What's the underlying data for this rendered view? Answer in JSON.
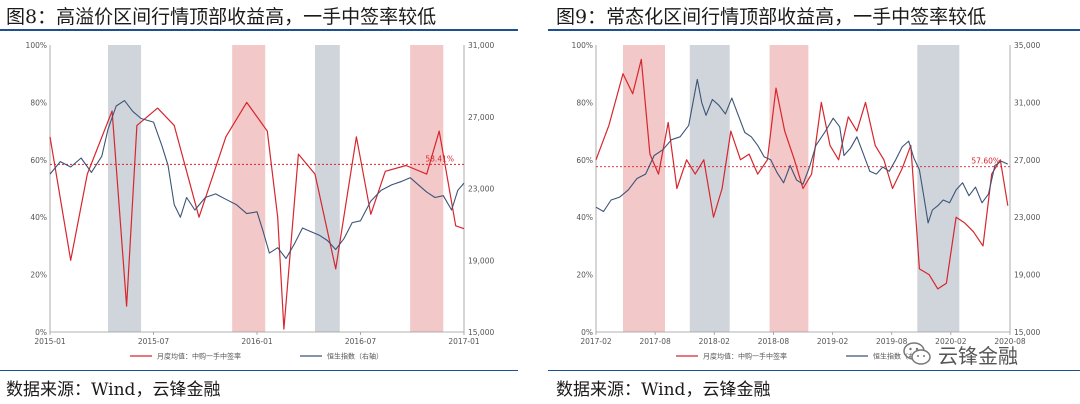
{
  "fig8": {
    "title": "图8：高溢价区间行情顶部收益高，一手中签率较低",
    "source": "数据来源：Wind，云锋金融"
  },
  "fig9": {
    "title": "图9：常态化区间行情顶部收益高，一手中签率较低",
    "source": "数据来源：Wind，云锋金融"
  },
  "watermark": {
    "text": "云锋金融",
    "icon": "wechat-icon"
  },
  "colors": {
    "red": "#d7262d",
    "navy": "#3d5478",
    "grey_band": "#a9b2c0",
    "red_band": "#e99a9a",
    "rule": "#1e4f91"
  },
  "chart_data": [
    {
      "type": "line",
      "x_ticks": [
        "2015-01",
        "2015-07",
        "2016-01",
        "2016-07",
        "2017-01"
      ],
      "y_left_ticks": [
        "0%",
        "20%",
        "40%",
        "60%",
        "80%",
        "100%"
      ],
      "y_left_range": [
        0,
        100
      ],
      "y_right_ticks": [
        "15,000",
        "19,000",
        "23,000",
        "27,000",
        "31,000"
      ],
      "y_right_range": [
        15000,
        31000
      ],
      "x_range": [
        2015.0,
        2017.0
      ],
      "reference": {
        "label": "58.41%",
        "value": 58.41,
        "axis": "left"
      },
      "bands": [
        {
          "kind": "grey",
          "from": 2015.28,
          "to": 2015.44
        },
        {
          "kind": "red",
          "from": 2015.88,
          "to": 2016.04
        },
        {
          "kind": "grey",
          "from": 2016.28,
          "to": 2016.4
        },
        {
          "kind": "red",
          "from": 2016.74,
          "to": 2016.9
        }
      ],
      "series": [
        {
          "name": "月度均值：中购一手中签率",
          "axis": "left",
          "color": "#d7262d",
          "points": [
            [
              2015.0,
              68
            ],
            [
              2015.1,
              25
            ],
            [
              2015.18,
              55
            ],
            [
              2015.3,
              77
            ],
            [
              2015.37,
              9
            ],
            [
              2015.42,
              72
            ],
            [
              2015.52,
              78
            ],
            [
              2015.6,
              72
            ],
            [
              2015.72,
              40
            ],
            [
              2015.85,
              68
            ],
            [
              2015.95,
              80
            ],
            [
              2016.05,
              70
            ],
            [
              2016.1,
              40
            ],
            [
              2016.13,
              1
            ],
            [
              2016.2,
              62
            ],
            [
              2016.28,
              55
            ],
            [
              2016.38,
              22
            ],
            [
              2016.48,
              68
            ],
            [
              2016.55,
              41
            ],
            [
              2016.62,
              56
            ],
            [
              2016.72,
              58
            ],
            [
              2016.82,
              55
            ],
            [
              2016.88,
              70
            ],
            [
              2016.96,
              37
            ],
            [
              2017.0,
              36
            ]
          ]
        },
        {
          "name": "恒生指数（右轴）",
          "axis": "right",
          "color": "#3d5478",
          "points": [
            [
              2015.0,
              23800
            ],
            [
              2015.05,
              24500
            ],
            [
              2015.1,
              24200
            ],
            [
              2015.15,
              24700
            ],
            [
              2015.2,
              23900
            ],
            [
              2015.25,
              24800
            ],
            [
              2015.28,
              26300
            ],
            [
              2015.32,
              27600
            ],
            [
              2015.36,
              27900
            ],
            [
              2015.4,
              27300
            ],
            [
              2015.44,
              26900
            ],
            [
              2015.5,
              26700
            ],
            [
              2015.54,
              25400
            ],
            [
              2015.57,
              24300
            ],
            [
              2015.6,
              22100
            ],
            [
              2015.63,
              21400
            ],
            [
              2015.66,
              22500
            ],
            [
              2015.7,
              21800
            ],
            [
              2015.75,
              22500
            ],
            [
              2015.8,
              22700
            ],
            [
              2015.85,
              22400
            ],
            [
              2015.9,
              22100
            ],
            [
              2015.95,
              21600
            ],
            [
              2016.0,
              21700
            ],
            [
              2016.03,
              20600
            ],
            [
              2016.06,
              19400
            ],
            [
              2016.1,
              19700
            ],
            [
              2016.14,
              19100
            ],
            [
              2016.18,
              19900
            ],
            [
              2016.22,
              20800
            ],
            [
              2016.26,
              20600
            ],
            [
              2016.3,
              20400
            ],
            [
              2016.34,
              20100
            ],
            [
              2016.38,
              19600
            ],
            [
              2016.42,
              20200
            ],
            [
              2016.46,
              21100
            ],
            [
              2016.5,
              21200
            ],
            [
              2016.55,
              22300
            ],
            [
              2016.6,
              22900
            ],
            [
              2016.65,
              23200
            ],
            [
              2016.7,
              23400
            ],
            [
              2016.74,
              23600
            ],
            [
              2016.78,
              23200
            ],
            [
              2016.82,
              22800
            ],
            [
              2016.86,
              22500
            ],
            [
              2016.9,
              22600
            ],
            [
              2016.94,
              21800
            ],
            [
              2016.97,
              22900
            ],
            [
              2017.0,
              23300
            ]
          ]
        }
      ]
    },
    {
      "type": "line",
      "x_ticks": [
        "2017-02",
        "2017-08",
        "2018-02",
        "2018-08",
        "2019-02",
        "2019-08",
        "2020-02",
        "2020-08"
      ],
      "y_left_ticks": [
        "0%",
        "20%",
        "40%",
        "60%",
        "80%",
        "100%"
      ],
      "y_left_range": [
        0,
        100
      ],
      "y_right_ticks": [
        "15,000",
        "19,000",
        "23,000",
        "27,000",
        "31,000",
        "35,000"
      ],
      "y_right_range": [
        15000,
        35000
      ],
      "x_range": [
        2017.08,
        2020.92
      ],
      "reference": {
        "label": "57.60%",
        "value": 57.6,
        "axis": "left"
      },
      "bands": [
        {
          "kind": "red",
          "from": 2017.33,
          "to": 2017.72
        },
        {
          "kind": "grey",
          "from": 2017.95,
          "to": 2018.32
        },
        {
          "kind": "red",
          "from": 2018.69,
          "to": 2019.05
        },
        {
          "kind": "grey",
          "from": 2020.06,
          "to": 2020.45
        }
      ],
      "series": [
        {
          "name": "月度均值：中购一手中签率",
          "axis": "left",
          "color": "#d7262d",
          "points": [
            [
              2017.08,
              60
            ],
            [
              2017.2,
              72
            ],
            [
              2017.33,
              90
            ],
            [
              2017.42,
              83
            ],
            [
              2017.5,
              95
            ],
            [
              2017.58,
              62
            ],
            [
              2017.66,
              55
            ],
            [
              2017.75,
              73
            ],
            [
              2017.83,
              50
            ],
            [
              2017.92,
              60
            ],
            [
              2018.0,
              55
            ],
            [
              2018.08,
              60
            ],
            [
              2018.17,
              40
            ],
            [
              2018.25,
              50
            ],
            [
              2018.33,
              70
            ],
            [
              2018.42,
              60
            ],
            [
              2018.5,
              62
            ],
            [
              2018.58,
              55
            ],
            [
              2018.67,
              60
            ],
            [
              2018.75,
              85
            ],
            [
              2018.83,
              70
            ],
            [
              2018.92,
              60
            ],
            [
              2019.0,
              50
            ],
            [
              2019.08,
              55
            ],
            [
              2019.17,
              80
            ],
            [
              2019.25,
              65
            ],
            [
              2019.33,
              60
            ],
            [
              2019.42,
              75
            ],
            [
              2019.5,
              70
            ],
            [
              2019.58,
              80
            ],
            [
              2019.67,
              65
            ],
            [
              2019.75,
              60
            ],
            [
              2019.83,
              50
            ],
            [
              2019.92,
              57
            ],
            [
              2020.0,
              65
            ],
            [
              2020.08,
              22
            ],
            [
              2020.17,
              20
            ],
            [
              2020.25,
              15
            ],
            [
              2020.33,
              17
            ],
            [
              2020.42,
              40
            ],
            [
              2020.5,
              38
            ],
            [
              2020.58,
              35
            ],
            [
              2020.67,
              30
            ],
            [
              2020.75,
              55
            ],
            [
              2020.83,
              60
            ],
            [
              2020.9,
              44
            ]
          ]
        },
        {
          "name": "恒生指数（右轴）",
          "axis": "right",
          "color": "#3d5478",
          "points": [
            [
              2017.08,
              23700
            ],
            [
              2017.15,
              23400
            ],
            [
              2017.22,
              24200
            ],
            [
              2017.3,
              24400
            ],
            [
              2017.38,
              24900
            ],
            [
              2017.46,
              25700
            ],
            [
              2017.54,
              26000
            ],
            [
              2017.62,
              27300
            ],
            [
              2017.7,
              27700
            ],
            [
              2017.78,
              28400
            ],
            [
              2017.86,
              28600
            ],
            [
              2017.94,
              29400
            ],
            [
              2018.02,
              32600
            ],
            [
              2018.06,
              31000
            ],
            [
              2018.1,
              30100
            ],
            [
              2018.16,
              31200
            ],
            [
              2018.22,
              30800
            ],
            [
              2018.28,
              30200
            ],
            [
              2018.34,
              31300
            ],
            [
              2018.4,
              30100
            ],
            [
              2018.46,
              28900
            ],
            [
              2018.52,
              28600
            ],
            [
              2018.58,
              28000
            ],
            [
              2018.64,
              27200
            ],
            [
              2018.7,
              27000
            ],
            [
              2018.76,
              26100
            ],
            [
              2018.82,
              25400
            ],
            [
              2018.88,
              26600
            ],
            [
              2018.94,
              25600
            ],
            [
              2019.0,
              25300
            ],
            [
              2019.06,
              26500
            ],
            [
              2019.12,
              28000
            ],
            [
              2019.2,
              28900
            ],
            [
              2019.28,
              29900
            ],
            [
              2019.34,
              29300
            ],
            [
              2019.38,
              27300
            ],
            [
              2019.44,
              27800
            ],
            [
              2019.5,
              28600
            ],
            [
              2019.56,
              27400
            ],
            [
              2019.62,
              26200
            ],
            [
              2019.68,
              26000
            ],
            [
              2019.74,
              26500
            ],
            [
              2019.8,
              26200
            ],
            [
              2019.86,
              27000
            ],
            [
              2019.92,
              27900
            ],
            [
              2019.98,
              28300
            ],
            [
              2020.03,
              27100
            ],
            [
              2020.08,
              26300
            ],
            [
              2020.12,
              24500
            ],
            [
              2020.16,
              22600
            ],
            [
              2020.2,
              23500
            ],
            [
              2020.25,
              23800
            ],
            [
              2020.3,
              24200
            ],
            [
              2020.36,
              24000
            ],
            [
              2020.42,
              24900
            ],
            [
              2020.48,
              25400
            ],
            [
              2020.54,
              24500
            ],
            [
              2020.6,
              25100
            ],
            [
              2020.66,
              24000
            ],
            [
              2020.72,
              24600
            ],
            [
              2020.78,
              26600
            ],
            [
              2020.84,
              26900
            ],
            [
              2020.9,
              26700
            ]
          ]
        }
      ]
    }
  ]
}
